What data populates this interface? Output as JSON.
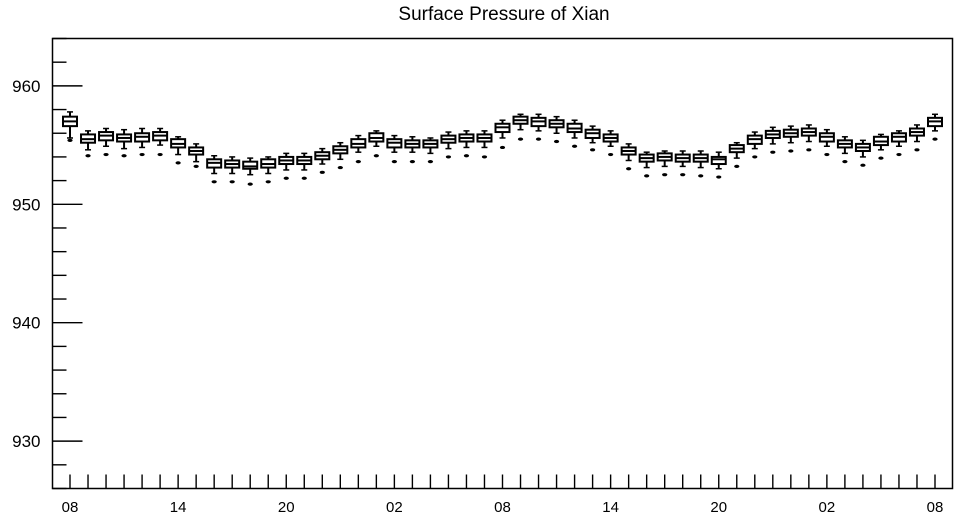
{
  "chart_data": {
    "type": "boxplot",
    "title": "Surface Pressure of Xian",
    "xlabel": "",
    "ylabel": "",
    "ylim": [
      926,
      964
    ],
    "y_ticks": [
      930,
      940,
      950,
      960
    ],
    "x_tick_labels": [
      "08",
      "14",
      "20",
      "02",
      "08",
      "14",
      "20",
      "02",
      "08"
    ],
    "x_tick_label_positions": [
      0,
      6,
      12,
      18,
      24,
      30,
      36,
      42,
      48
    ],
    "x_count": 49,
    "grid": false,
    "series": [
      {
        "boxes": [
          {
            "x": 0,
            "whislo": 955.6,
            "q1": 956.6,
            "med": 957.0,
            "q3": 957.4,
            "whishi": 957.8,
            "fliers": [
              955.4
            ]
          },
          {
            "x": 1,
            "whislo": 954.6,
            "q1": 955.2,
            "med": 955.5,
            "q3": 955.9,
            "whishi": 956.2,
            "fliers": [
              954.1
            ]
          },
          {
            "x": 2,
            "whislo": 954.9,
            "q1": 955.4,
            "med": 955.8,
            "q3": 956.1,
            "whishi": 956.4,
            "fliers": [
              954.2
            ]
          },
          {
            "x": 3,
            "whislo": 954.7,
            "q1": 955.3,
            "med": 955.6,
            "q3": 955.9,
            "whishi": 956.3,
            "fliers": [
              954.1
            ]
          },
          {
            "x": 4,
            "whislo": 954.8,
            "q1": 955.3,
            "med": 955.7,
            "q3": 956.0,
            "whishi": 956.4,
            "fliers": [
              954.2
            ]
          },
          {
            "x": 5,
            "whislo": 955.0,
            "q1": 955.4,
            "med": 955.8,
            "q3": 956.1,
            "whishi": 956.4,
            "fliers": [
              954.2
            ]
          },
          {
            "x": 6,
            "whislo": 954.2,
            "q1": 954.8,
            "med": 955.1,
            "q3": 955.5,
            "whishi": 955.7,
            "fliers": [
              953.5
            ]
          },
          {
            "x": 7,
            "whislo": 953.6,
            "q1": 954.2,
            "med": 954.5,
            "q3": 954.8,
            "whishi": 955.1,
            "fliers": [
              953.2
            ]
          },
          {
            "x": 8,
            "whislo": 952.6,
            "q1": 953.1,
            "med": 953.5,
            "q3": 953.8,
            "whishi": 954.1,
            "fliers": [
              951.9
            ]
          },
          {
            "x": 9,
            "whislo": 952.6,
            "q1": 953.1,
            "med": 953.4,
            "q3": 953.7,
            "whishi": 954.0,
            "fliers": [
              951.9
            ]
          },
          {
            "x": 10,
            "whislo": 952.5,
            "q1": 953.0,
            "med": 953.2,
            "q3": 953.6,
            "whishi": 953.9,
            "fliers": [
              951.7
            ]
          },
          {
            "x": 11,
            "whislo": 952.6,
            "q1": 953.1,
            "med": 953.4,
            "q3": 953.8,
            "whishi": 954.0,
            "fliers": [
              951.9
            ]
          },
          {
            "x": 12,
            "whislo": 952.9,
            "q1": 953.4,
            "med": 953.7,
            "q3": 954.0,
            "whishi": 954.3,
            "fliers": [
              952.2
            ]
          },
          {
            "x": 13,
            "whislo": 952.9,
            "q1": 953.4,
            "med": 953.7,
            "q3": 954.0,
            "whishi": 954.3,
            "fliers": [
              952.2
            ]
          },
          {
            "x": 14,
            "whislo": 953.4,
            "q1": 953.8,
            "med": 954.1,
            "q3": 954.4,
            "whishi": 954.7,
            "fliers": [
              952.7
            ]
          },
          {
            "x": 15,
            "whislo": 953.8,
            "q1": 954.3,
            "med": 954.6,
            "q3": 954.9,
            "whishi": 955.2,
            "fliers": [
              953.1
            ]
          },
          {
            "x": 16,
            "whislo": 954.4,
            "q1": 954.8,
            "med": 955.1,
            "q3": 955.5,
            "whishi": 955.8,
            "fliers": [
              953.6
            ]
          },
          {
            "x": 17,
            "whislo": 954.9,
            "q1": 955.3,
            "med": 955.6,
            "q3": 956.0,
            "whishi": 956.2,
            "fliers": [
              954.1
            ]
          },
          {
            "x": 18,
            "whislo": 954.4,
            "q1": 954.8,
            "med": 955.2,
            "q3": 955.5,
            "whishi": 955.8,
            "fliers": [
              953.6
            ]
          },
          {
            "x": 19,
            "whislo": 954.4,
            "q1": 954.8,
            "med": 955.1,
            "q3": 955.4,
            "whishi": 955.7,
            "fliers": [
              953.6
            ]
          },
          {
            "x": 20,
            "whislo": 954.3,
            "q1": 954.8,
            "med": 955.1,
            "q3": 955.4,
            "whishi": 955.6,
            "fliers": [
              953.6
            ]
          },
          {
            "x": 21,
            "whislo": 954.7,
            "q1": 955.2,
            "med": 955.5,
            "q3": 955.8,
            "whishi": 956.1,
            "fliers": [
              954.0
            ]
          },
          {
            "x": 22,
            "whislo": 954.8,
            "q1": 955.3,
            "med": 955.6,
            "q3": 955.9,
            "whishi": 956.2,
            "fliers": [
              954.1
            ]
          },
          {
            "x": 23,
            "whislo": 954.8,
            "q1": 955.3,
            "med": 955.6,
            "q3": 955.9,
            "whishi": 956.2,
            "fliers": [
              954.0
            ]
          },
          {
            "x": 24,
            "whislo": 955.6,
            "q1": 956.1,
            "med": 956.5,
            "q3": 956.8,
            "whishi": 957.1,
            "fliers": [
              954.8
            ]
          },
          {
            "x": 25,
            "whislo": 956.3,
            "q1": 956.8,
            "med": 957.1,
            "q3": 957.4,
            "whishi": 957.6,
            "fliers": [
              955.5
            ]
          },
          {
            "x": 26,
            "whislo": 956.2,
            "q1": 956.6,
            "med": 957.0,
            "q3": 957.3,
            "whishi": 957.6,
            "fliers": [
              955.5
            ]
          },
          {
            "x": 27,
            "whislo": 956.0,
            "q1": 956.5,
            "med": 956.8,
            "q3": 957.1,
            "whishi": 957.4,
            "fliers": [
              955.3
            ]
          },
          {
            "x": 28,
            "whislo": 955.6,
            "q1": 956.1,
            "med": 956.4,
            "q3": 956.8,
            "whishi": 957.1,
            "fliers": [
              954.9
            ]
          },
          {
            "x": 29,
            "whislo": 955.2,
            "q1": 955.6,
            "med": 956.0,
            "q3": 956.3,
            "whishi": 956.6,
            "fliers": [
              954.6
            ]
          },
          {
            "x": 30,
            "whislo": 954.9,
            "q1": 955.3,
            "med": 955.6,
            "q3": 955.9,
            "whishi": 956.2,
            "fliers": [
              954.2
            ]
          },
          {
            "x": 31,
            "whislo": 953.7,
            "q1": 954.2,
            "med": 954.5,
            "q3": 954.8,
            "whishi": 955.1,
            "fliers": [
              953.0
            ]
          },
          {
            "x": 32,
            "whislo": 953.1,
            "q1": 953.6,
            "med": 953.9,
            "q3": 954.2,
            "whishi": 954.4,
            "fliers": [
              952.4
            ]
          },
          {
            "x": 33,
            "whislo": 953.2,
            "q1": 953.7,
            "med": 954.0,
            "q3": 954.3,
            "whishi": 954.5,
            "fliers": [
              952.5
            ]
          },
          {
            "x": 34,
            "whislo": 953.2,
            "q1": 953.6,
            "med": 953.9,
            "q3": 954.2,
            "whishi": 954.5,
            "fliers": [
              952.5
            ]
          },
          {
            "x": 35,
            "whislo": 953.1,
            "q1": 953.6,
            "med": 953.9,
            "q3": 954.2,
            "whishi": 954.5,
            "fliers": [
              952.4
            ]
          },
          {
            "x": 36,
            "whislo": 953.0,
            "q1": 953.4,
            "med": 953.8,
            "q3": 954.0,
            "whishi": 954.4,
            "fliers": [
              952.3
            ]
          },
          {
            "x": 37,
            "whislo": 953.9,
            "q1": 954.4,
            "med": 954.7,
            "q3": 955.0,
            "whishi": 955.2,
            "fliers": [
              953.2
            ]
          },
          {
            "x": 38,
            "whislo": 954.7,
            "q1": 955.1,
            "med": 955.5,
            "q3": 955.8,
            "whishi": 956.1,
            "fliers": [
              954.0
            ]
          },
          {
            "x": 39,
            "whislo": 955.1,
            "q1": 955.6,
            "med": 955.9,
            "q3": 956.2,
            "whishi": 956.5,
            "fliers": [
              954.4
            ]
          },
          {
            "x": 40,
            "whislo": 955.2,
            "q1": 955.7,
            "med": 956.0,
            "q3": 956.3,
            "whishi": 956.6,
            "fliers": [
              954.5
            ]
          },
          {
            "x": 41,
            "whislo": 955.3,
            "q1": 955.8,
            "med": 956.1,
            "q3": 956.4,
            "whishi": 956.7,
            "fliers": [
              954.6
            ]
          },
          {
            "x": 42,
            "whislo": 954.9,
            "q1": 955.3,
            "med": 955.7,
            "q3": 956.0,
            "whishi": 956.3,
            "fliers": [
              954.2
            ]
          },
          {
            "x": 43,
            "whislo": 954.3,
            "q1": 954.8,
            "med": 955.1,
            "q3": 955.4,
            "whishi": 955.7,
            "fliers": [
              953.6
            ]
          },
          {
            "x": 44,
            "whislo": 954.0,
            "q1": 954.5,
            "med": 954.8,
            "q3": 955.1,
            "whishi": 955.4,
            "fliers": [
              953.3
            ]
          },
          {
            "x": 45,
            "whislo": 954.6,
            "q1": 955.0,
            "med": 955.3,
            "q3": 955.7,
            "whishi": 955.9,
            "fliers": [
              953.9
            ]
          },
          {
            "x": 46,
            "whislo": 954.9,
            "q1": 955.3,
            "med": 955.7,
            "q3": 956.0,
            "whishi": 956.2,
            "fliers": [
              954.2
            ]
          },
          {
            "x": 47,
            "whislo": 955.3,
            "q1": 955.8,
            "med": 956.1,
            "q3": 956.4,
            "whishi": 956.7,
            "fliers": [
              954.6
            ]
          },
          {
            "x": 48,
            "whislo": 956.2,
            "q1": 956.6,
            "med": 957.0,
            "q3": 957.3,
            "whishi": 957.6,
            "fliers": [
              955.5
            ]
          }
        ]
      }
    ]
  }
}
